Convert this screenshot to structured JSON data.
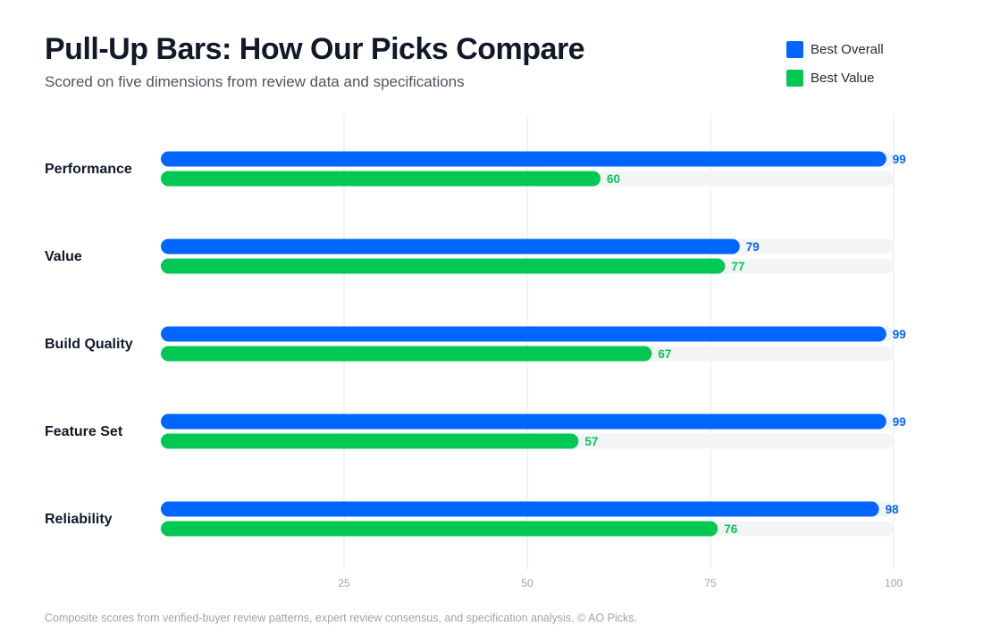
{
  "title": "Pull-Up Bars: How Our Picks Compare",
  "subtitle": "Scored on five dimensions from review data and specifications",
  "footer": "Composite scores from verified-buyer review patterns, expert review consensus, and specification analysis. © AO Picks.",
  "colors": {
    "best_overall": "#0066ff",
    "best_value": "#00c853",
    "track": "#f3f4f6",
    "grid": "#e5e7eb"
  },
  "legend": [
    {
      "label": "Best Overall",
      "color": "#0066ff"
    },
    {
      "label": "Best Value",
      "color": "#00c853"
    }
  ],
  "chart_data": {
    "type": "bar",
    "orientation": "horizontal",
    "categories": [
      "Performance",
      "Value",
      "Build Quality",
      "Feature Set",
      "Reliability"
    ],
    "series": [
      {
        "name": "Best Overall",
        "color": "#0066ff",
        "values": [
          99,
          79,
          99,
          99,
          98
        ]
      },
      {
        "name": "Best Value",
        "color": "#00c853",
        "values": [
          60,
          77,
          67,
          57,
          76
        ]
      }
    ],
    "xlim": [
      0,
      100
    ],
    "xticks": [
      25,
      50,
      75,
      100
    ],
    "grid": true,
    "legend_position": "top-right",
    "data_labels": true
  }
}
